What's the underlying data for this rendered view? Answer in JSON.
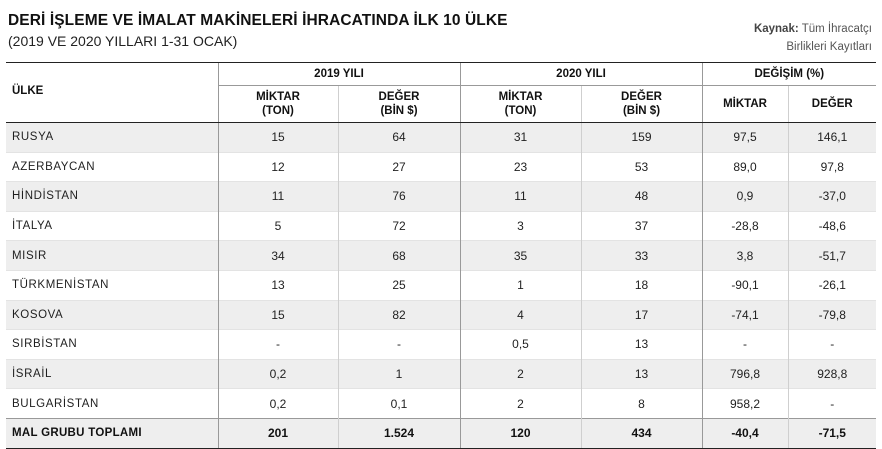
{
  "title": "DERİ İŞLEME VE İMALAT MAKİNELERİ İHRACATINDA İLK 10 ÜLKE",
  "subtitle": "(2019 VE 2020 YILLARI 1-31 OCAK)",
  "source": {
    "label": "Kaynak:",
    "line1": "Tüm İhracatçı",
    "line2": "Birlikleri Kayıtları"
  },
  "table": {
    "col_country": "ÜLKE",
    "groups": [
      "2019 YILI",
      "2020 YILI",
      "DEĞİŞİM (%)"
    ],
    "sub": {
      "miktar_l1": "MİKTAR",
      "miktar_l2": "(TON)",
      "deger_l1": "DEĞER",
      "deger_l2": "(BİN $)",
      "miktar_pct": "MİKTAR",
      "deger_pct": "DEĞER"
    },
    "rows": [
      [
        "RUSYA",
        "15",
        "64",
        "31",
        "159",
        "97,5",
        "146,1"
      ],
      [
        "AZERBAYCAN",
        "12",
        "27",
        "23",
        "53",
        "89,0",
        "97,8"
      ],
      [
        "HİNDİSTAN",
        "11",
        "76",
        "11",
        "48",
        "0,9",
        "-37,0"
      ],
      [
        "İTALYA",
        "5",
        "72",
        "3",
        "37",
        "-28,8",
        "-48,6"
      ],
      [
        "MISIR",
        "34",
        "68",
        "35",
        "33",
        "3,8",
        "-51,7"
      ],
      [
        "TÜRKMENİSTAN",
        "13",
        "25",
        "1",
        "18",
        "-90,1",
        "-26,1"
      ],
      [
        "KOSOVA",
        "15",
        "82",
        "4",
        "17",
        "-74,1",
        "-79,8"
      ],
      [
        "SIRBİSTAN",
        "-",
        "-",
        "0,5",
        "13",
        "-",
        "-"
      ],
      [
        "İSRAİL",
        "0,2",
        "1",
        "2",
        "13",
        "796,8",
        "928,8"
      ],
      [
        "BULGARİSTAN",
        "0,2",
        "0,1",
        "2",
        "8",
        "958,2",
        "-"
      ]
    ],
    "total": [
      "MAL GRUBU TOPLAMI",
      "201",
      "1.524",
      "120",
      "434",
      "-40,4",
      "-71,5"
    ]
  }
}
